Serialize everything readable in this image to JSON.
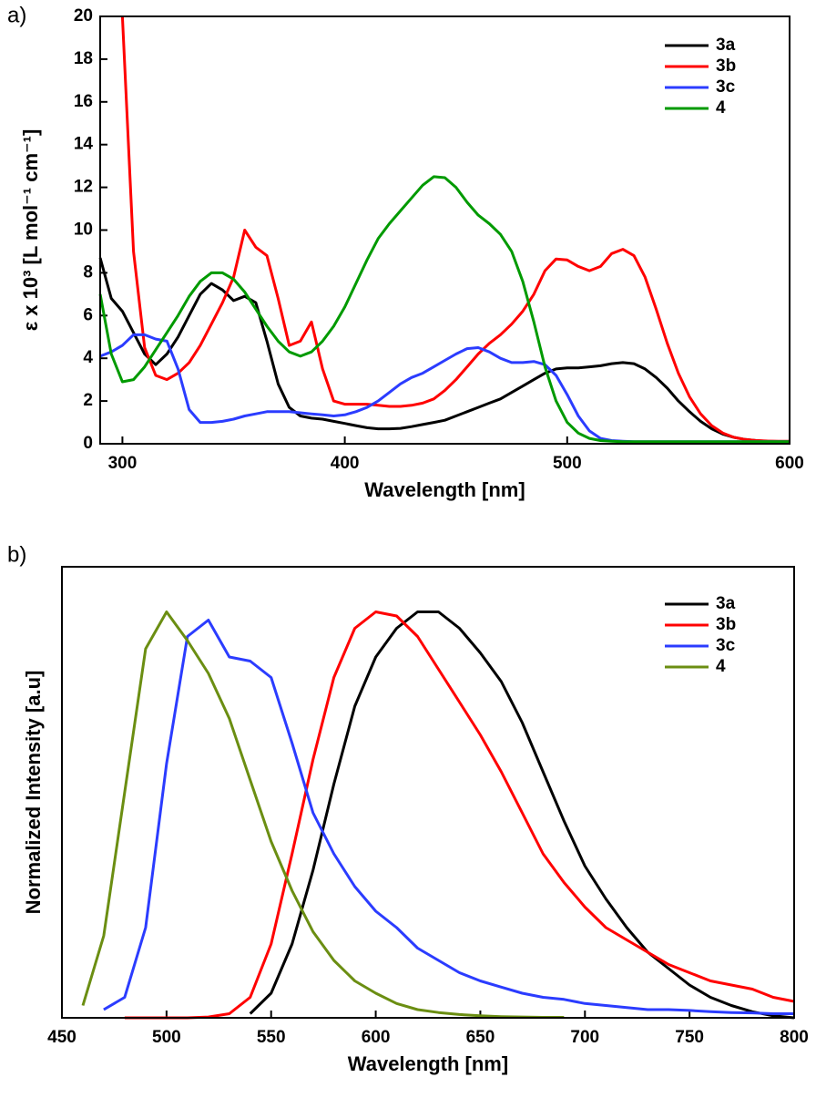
{
  "chart_data": [
    {
      "type": "line",
      "panel_label": "a)",
      "x_label": "Wavelength [nm]",
      "y_label": "ε x 10³ [L mol⁻¹ cm⁻¹]",
      "x": [
        290,
        295,
        300,
        305,
        310,
        315,
        320,
        325,
        330,
        335,
        340,
        345,
        350,
        355,
        360,
        365,
        370,
        375,
        380,
        385,
        390,
        395,
        400,
        405,
        410,
        415,
        420,
        425,
        430,
        435,
        440,
        445,
        450,
        455,
        460,
        465,
        470,
        475,
        480,
        485,
        490,
        495,
        500,
        505,
        510,
        515,
        520,
        525,
        530,
        535,
        540,
        545,
        550,
        555,
        560,
        565,
        570,
        575,
        580,
        585,
        590,
        595,
        600
      ],
      "series": [
        {
          "name": "3a",
          "color": "#000000",
          "values": [
            8.7,
            6.8,
            6.2,
            5.2,
            4.2,
            3.7,
            4.2,
            5.0,
            6.0,
            7.0,
            7.5,
            7.2,
            6.7,
            6.9,
            6.6,
            4.8,
            2.8,
            1.7,
            1.3,
            1.2,
            1.15,
            1.05,
            0.95,
            0.85,
            0.75,
            0.7,
            0.7,
            0.72,
            0.8,
            0.9,
            1.0,
            1.1,
            1.3,
            1.5,
            1.7,
            1.9,
            2.1,
            2.4,
            2.7,
            3.0,
            3.3,
            3.5,
            3.55,
            3.55,
            3.6,
            3.65,
            3.75,
            3.8,
            3.75,
            3.5,
            3.1,
            2.6,
            2.0,
            1.5,
            1.05,
            0.7,
            0.45,
            0.3,
            0.2,
            0.15,
            0.12,
            0.1,
            0.1
          ]
        },
        {
          "name": "3b",
          "color": "#ff0000",
          "values": [
            null,
            null,
            20,
            9,
            4.5,
            3.2,
            3.0,
            3.3,
            3.8,
            4.6,
            5.6,
            6.6,
            7.8,
            10.0,
            9.2,
            8.8,
            6.8,
            4.6,
            4.8,
            5.7,
            3.5,
            2.0,
            1.85,
            1.85,
            1.85,
            1.8,
            1.75,
            1.75,
            1.8,
            1.9,
            2.1,
            2.5,
            3.0,
            3.6,
            4.2,
            4.7,
            5.1,
            5.6,
            6.2,
            7.0,
            8.1,
            8.65,
            8.6,
            8.3,
            8.1,
            8.3,
            8.9,
            9.1,
            8.8,
            7.8,
            6.3,
            4.7,
            3.3,
            2.2,
            1.4,
            0.85,
            0.5,
            0.3,
            0.2,
            0.15,
            0.13,
            0.12,
            0.12
          ]
        },
        {
          "name": "3c",
          "color": "#2b3cff",
          "values": [
            4.1,
            4.3,
            4.6,
            5.1,
            5.1,
            4.9,
            4.8,
            3.5,
            1.6,
            1.0,
            1.0,
            1.05,
            1.15,
            1.3,
            1.4,
            1.5,
            1.5,
            1.5,
            1.45,
            1.4,
            1.35,
            1.3,
            1.35,
            1.5,
            1.7,
            2.0,
            2.4,
            2.8,
            3.1,
            3.3,
            3.6,
            3.9,
            4.2,
            4.45,
            4.5,
            4.3,
            4.0,
            3.8,
            3.8,
            3.85,
            3.7,
            3.2,
            2.3,
            1.3,
            0.6,
            0.25,
            0.15,
            0.12,
            0.1,
            0.1,
            0.1,
            0.1,
            0.1,
            0.1,
            0.1,
            0.1,
            0.1,
            0.1,
            0.1,
            0.1,
            0.1,
            0.1,
            0.1
          ]
        },
        {
          "name": "4",
          "color": "#009a00",
          "values": [
            7.0,
            4.2,
            2.9,
            3.0,
            3.6,
            4.4,
            5.2,
            6.0,
            6.9,
            7.6,
            8.0,
            8.0,
            7.7,
            7.1,
            6.3,
            5.5,
            4.8,
            4.3,
            4.1,
            4.3,
            4.8,
            5.5,
            6.4,
            7.5,
            8.6,
            9.6,
            10.3,
            10.9,
            11.5,
            12.1,
            12.5,
            12.45,
            12.0,
            11.3,
            10.7,
            10.3,
            9.8,
            9.0,
            7.6,
            5.7,
            3.6,
            2.0,
            1.0,
            0.5,
            0.25,
            0.15,
            0.12,
            0.1,
            0.1,
            0.1,
            0.1,
            0.1,
            0.1,
            0.1,
            0.1,
            0.1,
            0.1,
            0.1,
            0.1,
            0.1,
            0.1,
            0.1,
            0.1
          ]
        }
      ],
      "xlim": [
        290,
        600
      ],
      "xticks": [
        300,
        400,
        500,
        600
      ],
      "ylim": [
        0,
        20
      ],
      "yticks": [
        0,
        2,
        4,
        6,
        8,
        10,
        12,
        14,
        16,
        18,
        20
      ],
      "legend": "upper right"
    },
    {
      "type": "line",
      "panel_label": "b)",
      "x_label": "Wavelength [nm]",
      "y_label": "Normalized Intensity [a.u]",
      "x": [
        460,
        470,
        480,
        490,
        500,
        510,
        520,
        530,
        540,
        550,
        560,
        570,
        580,
        590,
        600,
        610,
        620,
        630,
        640,
        650,
        660,
        670,
        680,
        690,
        700,
        710,
        720,
        730,
        740,
        750,
        760,
        770,
        780,
        790,
        800
      ],
      "series": [
        {
          "name": "3a",
          "color": "#000000",
          "values": [
            null,
            null,
            null,
            null,
            null,
            null,
            null,
            null,
            0.01,
            0.06,
            0.18,
            0.36,
            0.57,
            0.76,
            0.88,
            0.95,
            0.99,
            0.99,
            0.95,
            0.89,
            0.82,
            0.72,
            0.6,
            0.48,
            0.37,
            0.29,
            0.22,
            0.16,
            0.12,
            0.08,
            0.05,
            0.03,
            0.015,
            0.005,
            0
          ]
        },
        {
          "name": "3b",
          "color": "#ff0000",
          "values": [
            null,
            null,
            0,
            0,
            0,
            0,
            0.002,
            0.01,
            0.05,
            0.18,
            0.4,
            0.63,
            0.83,
            0.95,
            0.99,
            0.98,
            0.93,
            0.85,
            0.77,
            0.69,
            0.6,
            0.5,
            0.4,
            0.33,
            0.27,
            0.22,
            0.19,
            0.16,
            0.13,
            0.11,
            0.09,
            0.08,
            0.07,
            0.05,
            0.04
          ]
        },
        {
          "name": "3c",
          "color": "#2b3cff",
          "values": [
            null,
            0.02,
            0.05,
            0.22,
            0.62,
            0.93,
            0.97,
            0.88,
            0.87,
            0.83,
            0.67,
            0.5,
            0.4,
            0.32,
            0.26,
            0.22,
            0.17,
            0.14,
            0.11,
            0.09,
            0.075,
            0.06,
            0.05,
            0.045,
            0.035,
            0.03,
            0.025,
            0.02,
            0.02,
            0.018,
            0.015,
            0.013,
            0.012,
            0.01,
            0.01
          ]
        },
        {
          "name": "4",
          "color": "#6b8e12",
          "values": [
            0.03,
            0.2,
            0.55,
            0.9,
            0.99,
            0.92,
            0.84,
            0.73,
            0.58,
            0.43,
            0.31,
            0.21,
            0.14,
            0.09,
            0.06,
            0.035,
            0.02,
            0.013,
            0.008,
            0.005,
            0.003,
            0.002,
            0.001,
            0.001,
            null,
            null,
            null,
            null,
            null,
            null,
            null,
            null,
            null,
            null,
            null
          ]
        }
      ],
      "xlim": [
        450,
        800
      ],
      "xticks": [
        450,
        500,
        550,
        600,
        650,
        700,
        750,
        800
      ],
      "ylim": [
        0,
        1.1
      ],
      "legend": "upper right"
    }
  ]
}
